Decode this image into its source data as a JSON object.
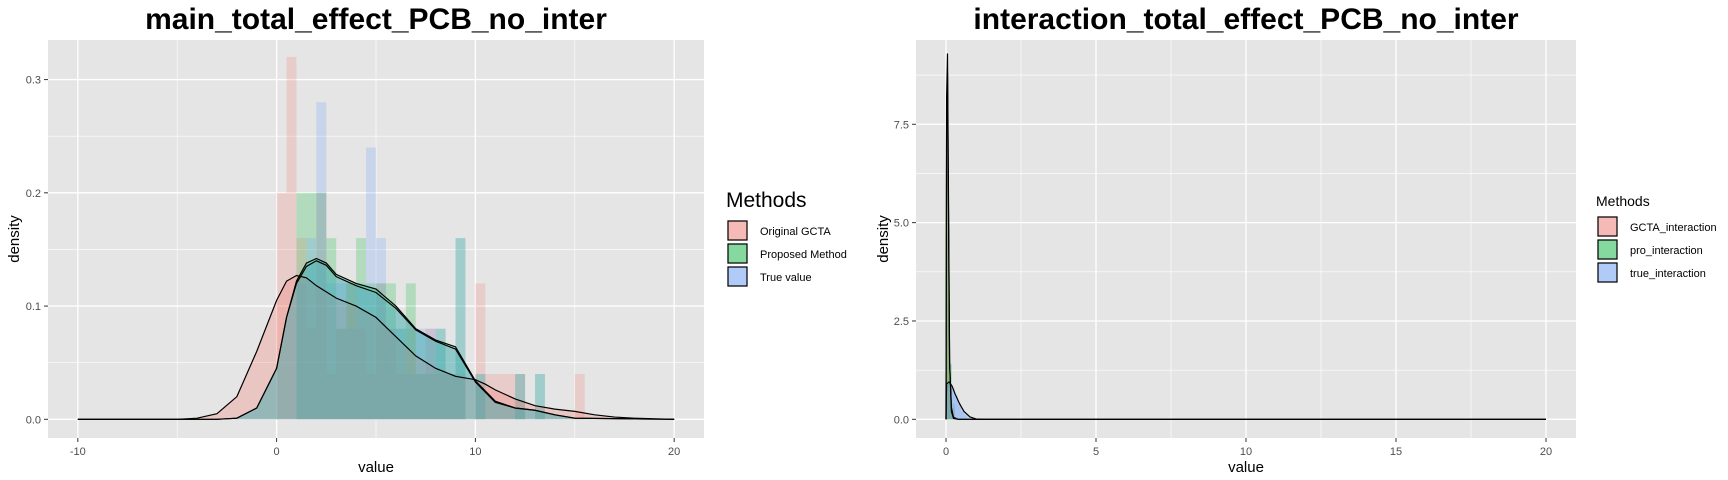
{
  "colors": {
    "panel_bg": "#e5e5e5",
    "grid": "#ffffff",
    "red": "#f8766d",
    "green": "#00ba38",
    "blue": "#619cff",
    "teal_overlap": "#7fb7b7"
  },
  "chart_data": [
    {
      "type": "histogram-density",
      "title": "main_total_effect_PCB_no_inter",
      "xlabel": "value",
      "ylabel": "density",
      "xlim": [
        -10,
        20
      ],
      "ylim": [
        0,
        0.33
      ],
      "xticks": [
        -10,
        0,
        10,
        20
      ],
      "yticks": [
        0.0,
        0.1,
        0.2,
        0.3
      ],
      "xtick_labels": [
        "-10",
        "0",
        "10",
        "20"
      ],
      "ytick_labels": [
        "0.0",
        "0.1",
        "0.2",
        "0.3"
      ],
      "grid": true,
      "legend": {
        "title": "Methods",
        "position": "right",
        "entries": [
          "Original GCTA",
          "Proposed Method",
          "True value"
        ]
      },
      "bin_width": 0.5,
      "series": [
        {
          "name": "Original GCTA",
          "color": "red",
          "bins": [
            [
              0,
              0.2
            ],
            [
              0.5,
              0.32
            ],
            [
              1,
              0.16
            ],
            [
              1.5,
              0.08
            ],
            [
              2,
              0.2
            ],
            [
              2.5,
              0.04
            ],
            [
              3,
              0.08
            ],
            [
              3.5,
              0.12
            ],
            [
              4,
              0.08
            ],
            [
              4.5,
              0.04
            ],
            [
              5,
              0.12
            ],
            [
              5.5,
              0.08
            ],
            [
              6,
              0.04
            ],
            [
              6.5,
              0.08
            ],
            [
              7,
              0.04
            ],
            [
              7.5,
              0.08
            ],
            [
              8,
              0.04
            ],
            [
              8.5,
              0.04
            ],
            [
              9,
              0.04
            ],
            [
              10,
              0.12
            ],
            [
              10.5,
              0.04
            ],
            [
              11,
              0.04
            ],
            [
              11.5,
              0.04
            ],
            [
              12,
              0.04
            ],
            [
              15,
              0.04
            ]
          ],
          "density": [
            [
              -10,
              0
            ],
            [
              -5,
              0.0
            ],
            [
              -4,
              0.001
            ],
            [
              -3,
              0.005
            ],
            [
              -2,
              0.02
            ],
            [
              -1,
              0.06
            ],
            [
              0,
              0.105
            ],
            [
              0.5,
              0.122
            ],
            [
              1,
              0.127
            ],
            [
              1.5,
              0.125
            ],
            [
              2,
              0.118
            ],
            [
              3,
              0.107
            ],
            [
              4,
              0.1
            ],
            [
              5,
              0.09
            ],
            [
              6,
              0.073
            ],
            [
              7,
              0.056
            ],
            [
              8,
              0.045
            ],
            [
              9,
              0.038
            ],
            [
              10,
              0.035
            ],
            [
              10.5,
              0.031
            ],
            [
              11,
              0.026
            ],
            [
              12,
              0.018
            ],
            [
              13,
              0.012
            ],
            [
              14,
              0.009
            ],
            [
              15,
              0.007
            ],
            [
              16,
              0.004
            ],
            [
              17,
              0.002
            ],
            [
              18,
              0.001
            ],
            [
              20,
              0
            ]
          ]
        },
        {
          "name": "Proposed Method",
          "color": "green",
          "bins": [
            [
              1,
              0.2
            ],
            [
              1.5,
              0.2
            ],
            [
              2,
              0.2
            ],
            [
              2.5,
              0.16
            ],
            [
              3,
              0.08
            ],
            [
              3.5,
              0.12
            ],
            [
              4,
              0.16
            ],
            [
              4.5,
              0.12
            ],
            [
              5,
              0.12
            ],
            [
              5.5,
              0.12
            ],
            [
              6,
              0.08
            ],
            [
              6.5,
              0.12
            ],
            [
              7,
              0.04
            ],
            [
              7.5,
              0.04
            ],
            [
              8,
              0.08
            ],
            [
              8.5,
              0.04
            ],
            [
              9,
              0.16
            ],
            [
              10,
              0.04
            ],
            [
              12,
              0.04
            ],
            [
              13,
              0.04
            ]
          ],
          "density": [
            [
              -10,
              0
            ],
            [
              -3,
              0.0
            ],
            [
              -2,
              0.001
            ],
            [
              -1,
              0.01
            ],
            [
              0,
              0.045
            ],
            [
              0.5,
              0.09
            ],
            [
              1,
              0.122
            ],
            [
              1.5,
              0.138
            ],
            [
              2,
              0.142
            ],
            [
              2.5,
              0.138
            ],
            [
              3,
              0.128
            ],
            [
              4,
              0.12
            ],
            [
              5,
              0.115
            ],
            [
              6,
              0.1
            ],
            [
              7,
              0.08
            ],
            [
              8,
              0.07
            ],
            [
              9,
              0.064
            ],
            [
              10,
              0.034
            ],
            [
              11,
              0.016
            ],
            [
              12,
              0.01
            ],
            [
              13,
              0.008
            ],
            [
              14,
              0.004
            ],
            [
              15,
              0.001
            ],
            [
              20,
              0
            ]
          ]
        },
        {
          "name": "True value",
          "color": "blue",
          "bins": [
            [
              1,
              0.12
            ],
            [
              1.5,
              0.16
            ],
            [
              2,
              0.28
            ],
            [
              2.5,
              0.12
            ],
            [
              3,
              0.12
            ],
            [
              3.5,
              0.08
            ],
            [
              4,
              0.12
            ],
            [
              4.5,
              0.24
            ],
            [
              5,
              0.16
            ],
            [
              5.5,
              0.08
            ],
            [
              6,
              0.08
            ],
            [
              6.5,
              0.04
            ],
            [
              7,
              0.08
            ],
            [
              7.5,
              0.08
            ],
            [
              8,
              0.08
            ],
            [
              8.5,
              0.04
            ],
            [
              9,
              0.16
            ],
            [
              10,
              0.04
            ],
            [
              12,
              0.04
            ],
            [
              13,
              0.04
            ]
          ],
          "density": [
            [
              -10,
              0
            ],
            [
              -3,
              0.0
            ],
            [
              -2,
              0.001
            ],
            [
              -1,
              0.01
            ],
            [
              0,
              0.045
            ],
            [
              0.5,
              0.09
            ],
            [
              1,
              0.12
            ],
            [
              1.5,
              0.135
            ],
            [
              2,
              0.14
            ],
            [
              2.5,
              0.136
            ],
            [
              3,
              0.126
            ],
            [
              4,
              0.118
            ],
            [
              5,
              0.112
            ],
            [
              6,
              0.098
            ],
            [
              7,
              0.079
            ],
            [
              8,
              0.069
            ],
            [
              9,
              0.062
            ],
            [
              10,
              0.033
            ],
            [
              11,
              0.015
            ],
            [
              12,
              0.01
            ],
            [
              13,
              0.008
            ],
            [
              14,
              0.004
            ],
            [
              15,
              0.001
            ],
            [
              20,
              0
            ]
          ]
        }
      ]
    },
    {
      "type": "histogram-density",
      "title": "interaction_total_effect_PCB_no_inter",
      "xlabel": "value",
      "ylabel": "density",
      "xlim": [
        0,
        20
      ],
      "ylim": [
        0,
        9.5
      ],
      "xticks": [
        0,
        5,
        10,
        15,
        20
      ],
      "yticks": [
        0.0,
        2.5,
        5.0,
        7.5
      ],
      "xtick_labels": [
        "0",
        "5",
        "10",
        "15",
        "20"
      ],
      "ytick_labels": [
        "0.0",
        "2.5",
        "5.0",
        "7.5"
      ],
      "grid": true,
      "legend": {
        "title": "Methods",
        "position": "right",
        "entries": [
          "GCTA_interaction",
          "pro_interaction",
          "true_interaction"
        ]
      },
      "bin_width": 0.1,
      "series": [
        {
          "name": "GCTA_interaction",
          "color": "red",
          "bins": [
            [
              0,
              6.2
            ],
            [
              0.1,
              0.8
            ],
            [
              0.2,
              0.3
            ]
          ],
          "density": [
            [
              0,
              0
            ],
            [
              0.02,
              8.2
            ],
            [
              0.05,
              9.3
            ],
            [
              0.08,
              6.0
            ],
            [
              0.12,
              1.5
            ],
            [
              0.18,
              0.2
            ],
            [
              0.25,
              0.02
            ],
            [
              0.4,
              0
            ],
            [
              20,
              0
            ]
          ]
        },
        {
          "name": "pro_interaction",
          "color": "green",
          "bins": [
            [
              0,
              6.0
            ],
            [
              0.1,
              1.4
            ],
            [
              0.2,
              0.4
            ]
          ],
          "density": [
            [
              0,
              0
            ],
            [
              0.02,
              7.5
            ],
            [
              0.05,
              8.8
            ],
            [
              0.08,
              5.5
            ],
            [
              0.12,
              1.4
            ],
            [
              0.18,
              0.3
            ],
            [
              0.25,
              0.05
            ],
            [
              0.4,
              0
            ],
            [
              20,
              0
            ]
          ]
        },
        {
          "name": "true_interaction",
          "color": "blue",
          "bins": [
            [
              0,
              0.9
            ],
            [
              0.1,
              0.9
            ],
            [
              0.2,
              0.8
            ],
            [
              0.3,
              0.6
            ],
            [
              0.4,
              0.4
            ],
            [
              0.5,
              0.2
            ],
            [
              0.6,
              0.1
            ]
          ],
          "density": [
            [
              0,
              0
            ],
            [
              0.02,
              0.9
            ],
            [
              0.1,
              0.95
            ],
            [
              0.2,
              0.85
            ],
            [
              0.3,
              0.65
            ],
            [
              0.45,
              0.4
            ],
            [
              0.6,
              0.2
            ],
            [
              0.8,
              0.06
            ],
            [
              1.0,
              0.01
            ],
            [
              1.3,
              0
            ],
            [
              20,
              0
            ]
          ]
        }
      ]
    }
  ]
}
